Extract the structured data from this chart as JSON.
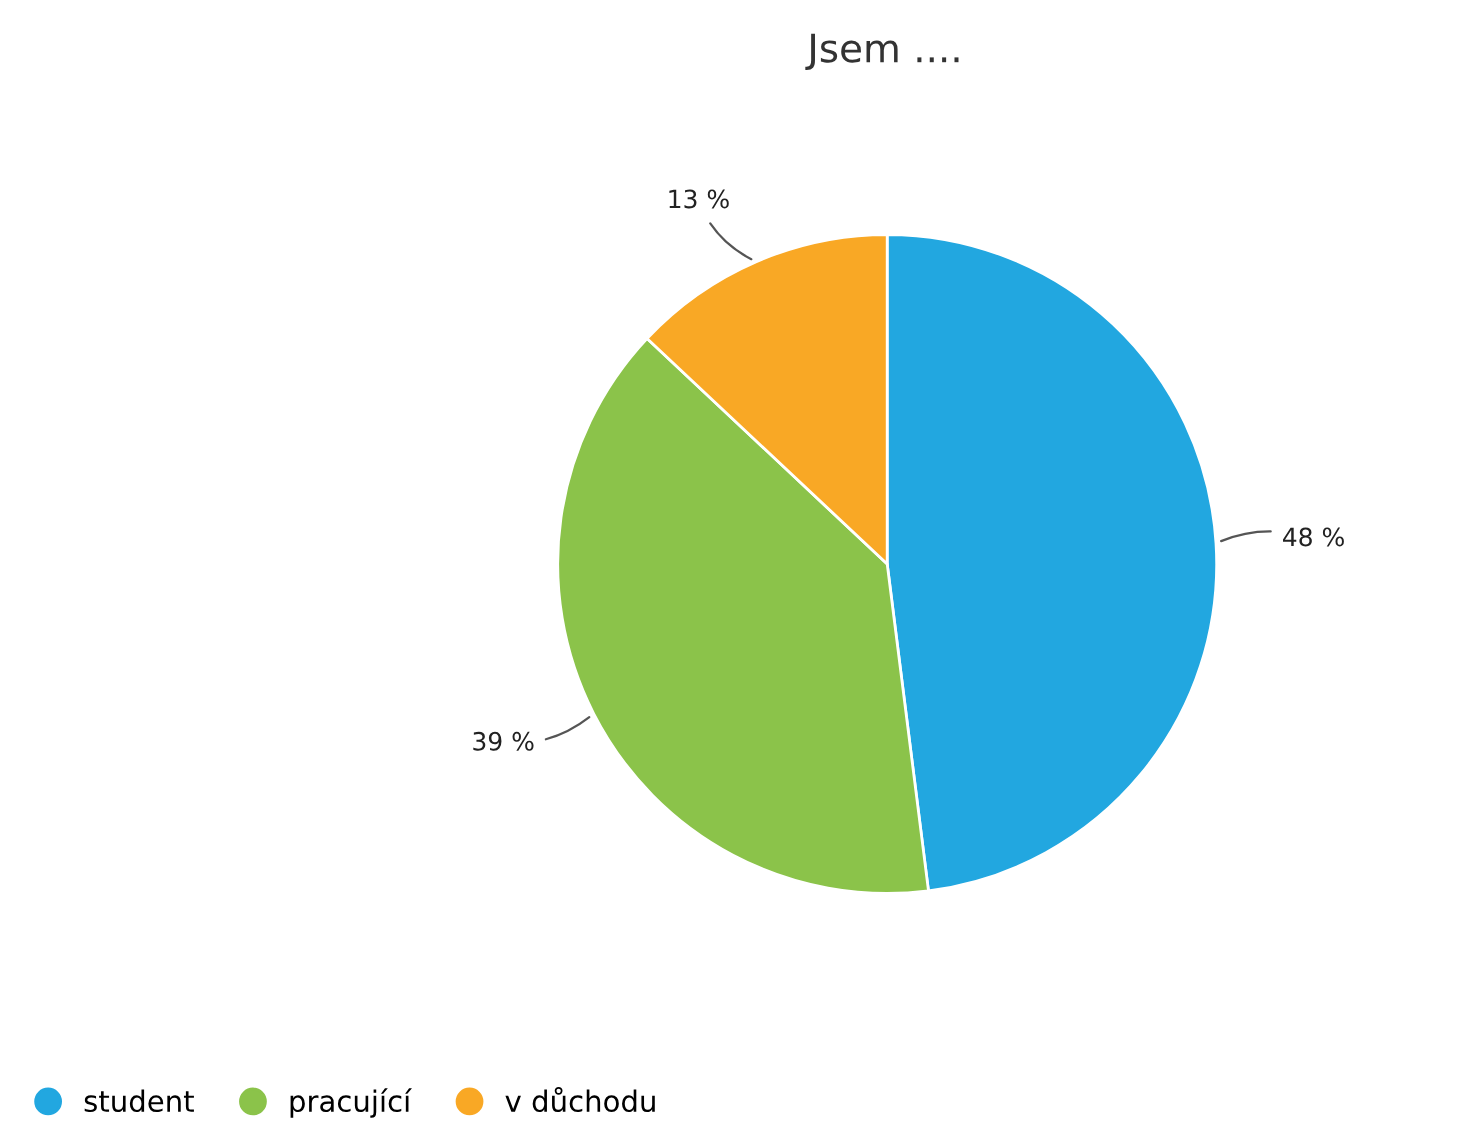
{
  "chart_data": {
    "type": "pie",
    "title": "Jsem ....",
    "categories": [
      "student",
      "pracující",
      "v důchodu"
    ],
    "values": [
      48,
      39,
      13
    ],
    "colors": [
      "#22a7e0",
      "#8bc34a",
      "#f9a825"
    ],
    "value_labels": [
      "48 %",
      "39 %",
      "13 %"
    ],
    "legend": "bottom left"
  }
}
